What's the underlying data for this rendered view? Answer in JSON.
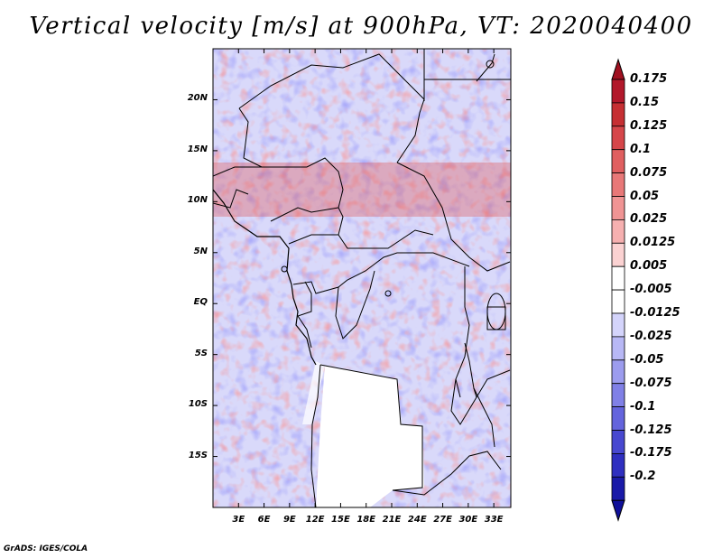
{
  "title": "Vertical velocity [m/s] at 900hPa, VT: 2020040400",
  "footer": "GrADS: IGES/COLA",
  "map": {
    "lat_labels": [
      "20N",
      "15N",
      "10N",
      "5N",
      "EQ",
      "5S",
      "10S",
      "15S"
    ],
    "lat_values": [
      20,
      15,
      10,
      5,
      0,
      -5,
      -10,
      -15
    ],
    "lon_labels": [
      "3E",
      "6E",
      "9E",
      "12E",
      "15E",
      "18E",
      "21E",
      "24E",
      "27E",
      "30E",
      "33E"
    ],
    "lon_values": [
      3,
      6,
      9,
      12,
      15,
      18,
      21,
      24,
      27,
      30,
      33
    ],
    "lat_range": [
      -20,
      25
    ],
    "lon_range": [
      0,
      35
    ]
  },
  "colorbar": {
    "labels": [
      "0.175",
      "0.15",
      "0.125",
      "0.1",
      "0.075",
      "0.05",
      "0.025",
      "0.0125",
      "0.005",
      "-0.005",
      "-0.0125",
      "-0.025",
      "-0.05",
      "-0.075",
      "-0.1",
      "-0.125",
      "-0.175",
      "-0.2"
    ],
    "colors": [
      "#b2182b",
      "#c62f33",
      "#d6464a",
      "#e05f60",
      "#e87878",
      "#f09494",
      "#f6b0b0",
      "#fbd2d2",
      "#ffffff",
      "#ffffff",
      "#d4d4fb",
      "#b8b8f5",
      "#9c9cee",
      "#8080e6",
      "#6464dd",
      "#4848d0",
      "#2f2fc0",
      "#1a1aa8"
    ],
    "top_color": "#a01020",
    "bottom_color": "#10109a"
  }
}
